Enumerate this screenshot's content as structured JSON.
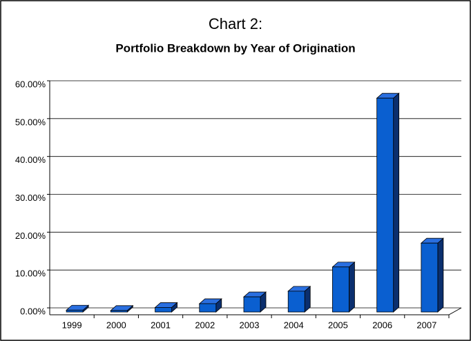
{
  "chart_data": {
    "type": "bar",
    "title": "Chart 2:",
    "subtitle": "Portfolio Breakdown by Year of Origination",
    "categories": [
      "1999",
      "2000",
      "2001",
      "2002",
      "2003",
      "2004",
      "2005",
      "2006",
      "2007"
    ],
    "values": [
      0.5,
      0.4,
      1.2,
      2.2,
      4.0,
      5.5,
      11.9,
      56.5,
      18.2
    ],
    "color": "#0a5fd0",
    "ylim": [
      0,
      60
    ],
    "yticks": [
      {
        "value": 0,
        "label": "0.00%"
      },
      {
        "value": 10,
        "label": "10.00%"
      },
      {
        "value": 20,
        "label": "20.00%"
      },
      {
        "value": 30,
        "label": "30.00%"
      },
      {
        "value": 40,
        "label": "40.00%"
      },
      {
        "value": 50,
        "label": "50.00%"
      },
      {
        "value": 60,
        "label": "60.00%"
      }
    ],
    "grid": true
  }
}
